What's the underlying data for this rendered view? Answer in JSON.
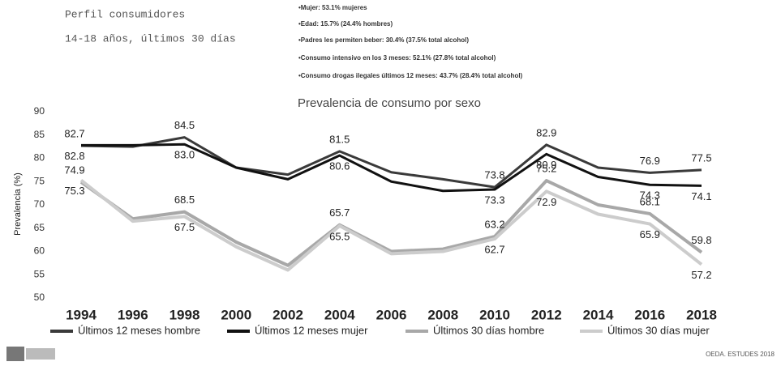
{
  "header": {
    "title": "Perfil consumidores",
    "subtitle": "14-18 años, últimos 30 días",
    "bullets": [
      "•Mujer: 53.1% mujeres",
      "•Edad: 15.7% (24.4% hombres)",
      "•Padres les permiten beber: 30.4% (37.5% total alcohol)",
      "•Consumo intensivo en los 3 meses: 52.1% (27.8% total alcohol)",
      "•Consumo drogas ilegales últimos 12 meses: 43.7% (28.4% total alcohol)"
    ]
  },
  "chart_data": {
    "type": "line",
    "title": "Prevalencia de consumo por sexo",
    "y_label": "Prevalencia (%)",
    "categories": [
      "1994",
      "1996",
      "1998",
      "2000",
      "2002",
      "2004",
      "2006",
      "2008",
      "2010",
      "2012",
      "2014",
      "2016",
      "2018"
    ],
    "ylim": [
      50,
      90
    ],
    "yticks": [
      50,
      55,
      60,
      65,
      70,
      75,
      80,
      85,
      90
    ],
    "series": [
      {
        "name": "Últimos 12 meses hombre",
        "color": "#3a3a3a",
        "values": [
          82.7,
          82.5,
          84.5,
          78,
          76.5,
          81.5,
          77,
          75.5,
          73.8,
          82.9,
          78,
          76.9,
          77.5
        ],
        "value_labels": [
          "82.7",
          null,
          "84.5",
          null,
          null,
          "81.5",
          null,
          null,
          "73.8",
          "82.9",
          null,
          "76.9",
          "77.5"
        ]
      },
      {
        "name": "Últimos 12 meses mujer",
        "color": "#111111",
        "values": [
          82.8,
          82.8,
          83.0,
          78,
          75.5,
          80.6,
          75,
          73,
          73.3,
          80.9,
          76,
          74.3,
          74.1
        ],
        "value_labels": [
          "82.8",
          null,
          "83.0",
          null,
          null,
          "80.6",
          null,
          null,
          "73.3",
          "80.9",
          null,
          "74.3",
          "74.1"
        ]
      },
      {
        "name": "Últimos 30 días hombre",
        "color": "#a8a8a8",
        "values": [
          74.9,
          67,
          68.5,
          62,
          57,
          65.7,
          60,
          60.5,
          63.2,
          75.2,
          70,
          68.1,
          59.8
        ],
        "value_labels": [
          "74.9",
          null,
          "68.5",
          null,
          null,
          "65.7",
          null,
          null,
          "63.2",
          "75.2",
          null,
          "68.1",
          "59.8"
        ]
      },
      {
        "name": "Últimos 30 días mujer",
        "color": "#cccccc",
        "values": [
          75.3,
          66.5,
          67.5,
          61,
          56,
          65.5,
          59.5,
          60,
          62.7,
          72.9,
          68,
          65.9,
          57.2
        ],
        "value_labels": [
          "75.3",
          null,
          "67.5",
          null,
          null,
          "65.5",
          null,
          null,
          "62.7",
          "72.9",
          null,
          "65.9",
          "57.2"
        ]
      }
    ]
  },
  "footer": {
    "source": "OEDA. ESTUDES 2018"
  }
}
